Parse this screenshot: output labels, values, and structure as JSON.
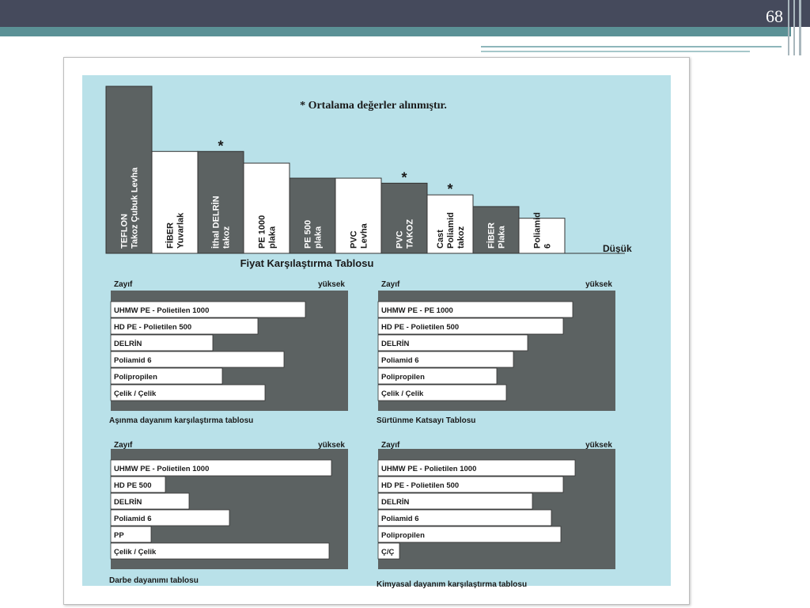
{
  "slide": {
    "page_number": "68"
  },
  "chart_data": [
    {
      "type": "bar",
      "title": "Fiyat Karşılaştırma Tablosu",
      "note": "* Ortalama değerler alınmıştır.",
      "low_label": "Düşük",
      "categories": [
        [
          "TEFLON",
          "Takoz Çubuk Levha"
        ],
        [
          "FİBER",
          "Yuvarlak"
        ],
        [
          "İthal DELRİN",
          "takoz"
        ],
        [
          "PE 1000",
          "plaka"
        ],
        [
          "PE 500",
          "plaka"
        ],
        [
          "PVC",
          "Levha"
        ],
        [
          "PVC",
          "TAKOZ"
        ],
        [
          "Cast",
          "Poliamid",
          "takoz"
        ],
        [
          "FİBER",
          "Plaka"
        ],
        [
          "Poliamid",
          "6"
        ]
      ],
      "values": [
        100,
        61,
        61,
        54,
        45,
        45,
        42,
        35,
        28,
        21
      ],
      "fills": [
        "dark",
        "light",
        "dark",
        "light",
        "dark",
        "light",
        "dark",
        "light",
        "dark",
        "light"
      ],
      "asterisk": [
        false,
        false,
        true,
        false,
        false,
        false,
        true,
        true,
        false,
        false
      ],
      "ylim": [
        0,
        100
      ]
    },
    {
      "type": "bar",
      "orientation": "horizontal",
      "title": "Aşınma dayanım karşılaştırma tablosu",
      "low_label": "Zayıf",
      "high_label": "yüksek",
      "categories": [
        "UHMW PE - Polietilen 1000",
        "HD PE - Polietilen 500",
        "DELRİN",
        "Poliamid 6",
        "Polipropilen",
        "Çelik / Çelik"
      ],
      "values": [
        82,
        62,
        43,
        73,
        47,
        65
      ],
      "xlim": [
        0,
        100
      ]
    },
    {
      "type": "bar",
      "orientation": "horizontal",
      "title": "Sürtünme Katsayı Tablosu",
      "low_label": "Zayıf",
      "high_label": "yüksek",
      "categories": [
        "UHMW PE - PE 1000",
        "HD PE - Polietilen 500",
        "DELRİN",
        "Poliamid 6",
        "Polipropilen",
        "Çelik / Çelik"
      ],
      "values": [
        82,
        78,
        63,
        57,
        50,
        54
      ],
      "xlim": [
        0,
        100
      ]
    },
    {
      "type": "bar",
      "orientation": "horizontal",
      "title": "Darbe dayanımı tablosu",
      "low_label": "Zayıf",
      "high_label": "yüksek",
      "categories": [
        "UHMW PE - Polietilen 1000",
        "HD PE 500",
        "DELRİN",
        "Poliamid 6",
        "PP",
        "Çelik / Çelik"
      ],
      "values": [
        93,
        23,
        33,
        50,
        17,
        92
      ],
      "xlim": [
        0,
        100
      ]
    },
    {
      "type": "bar",
      "orientation": "horizontal",
      "title": "Kimyasal dayanım karşılaştırma tablosu",
      "low_label": "Zayıf",
      "high_label": "yüksek",
      "categories": [
        "UHMW PE - Polietilen 1000",
        "HD PE - Polietilen 500",
        "DELRİN",
        "Poliamid 6",
        "Polipropilen",
        "Ç/Ç"
      ],
      "values": [
        83,
        78,
        65,
        73,
        77,
        9
      ],
      "xlim": [
        0,
        100
      ]
    }
  ],
  "colors": {
    "panel": "#b9e1e9",
    "dark_fill": "#5c6262",
    "light_fill": "#ffffff",
    "text": "#1a1a1a"
  }
}
